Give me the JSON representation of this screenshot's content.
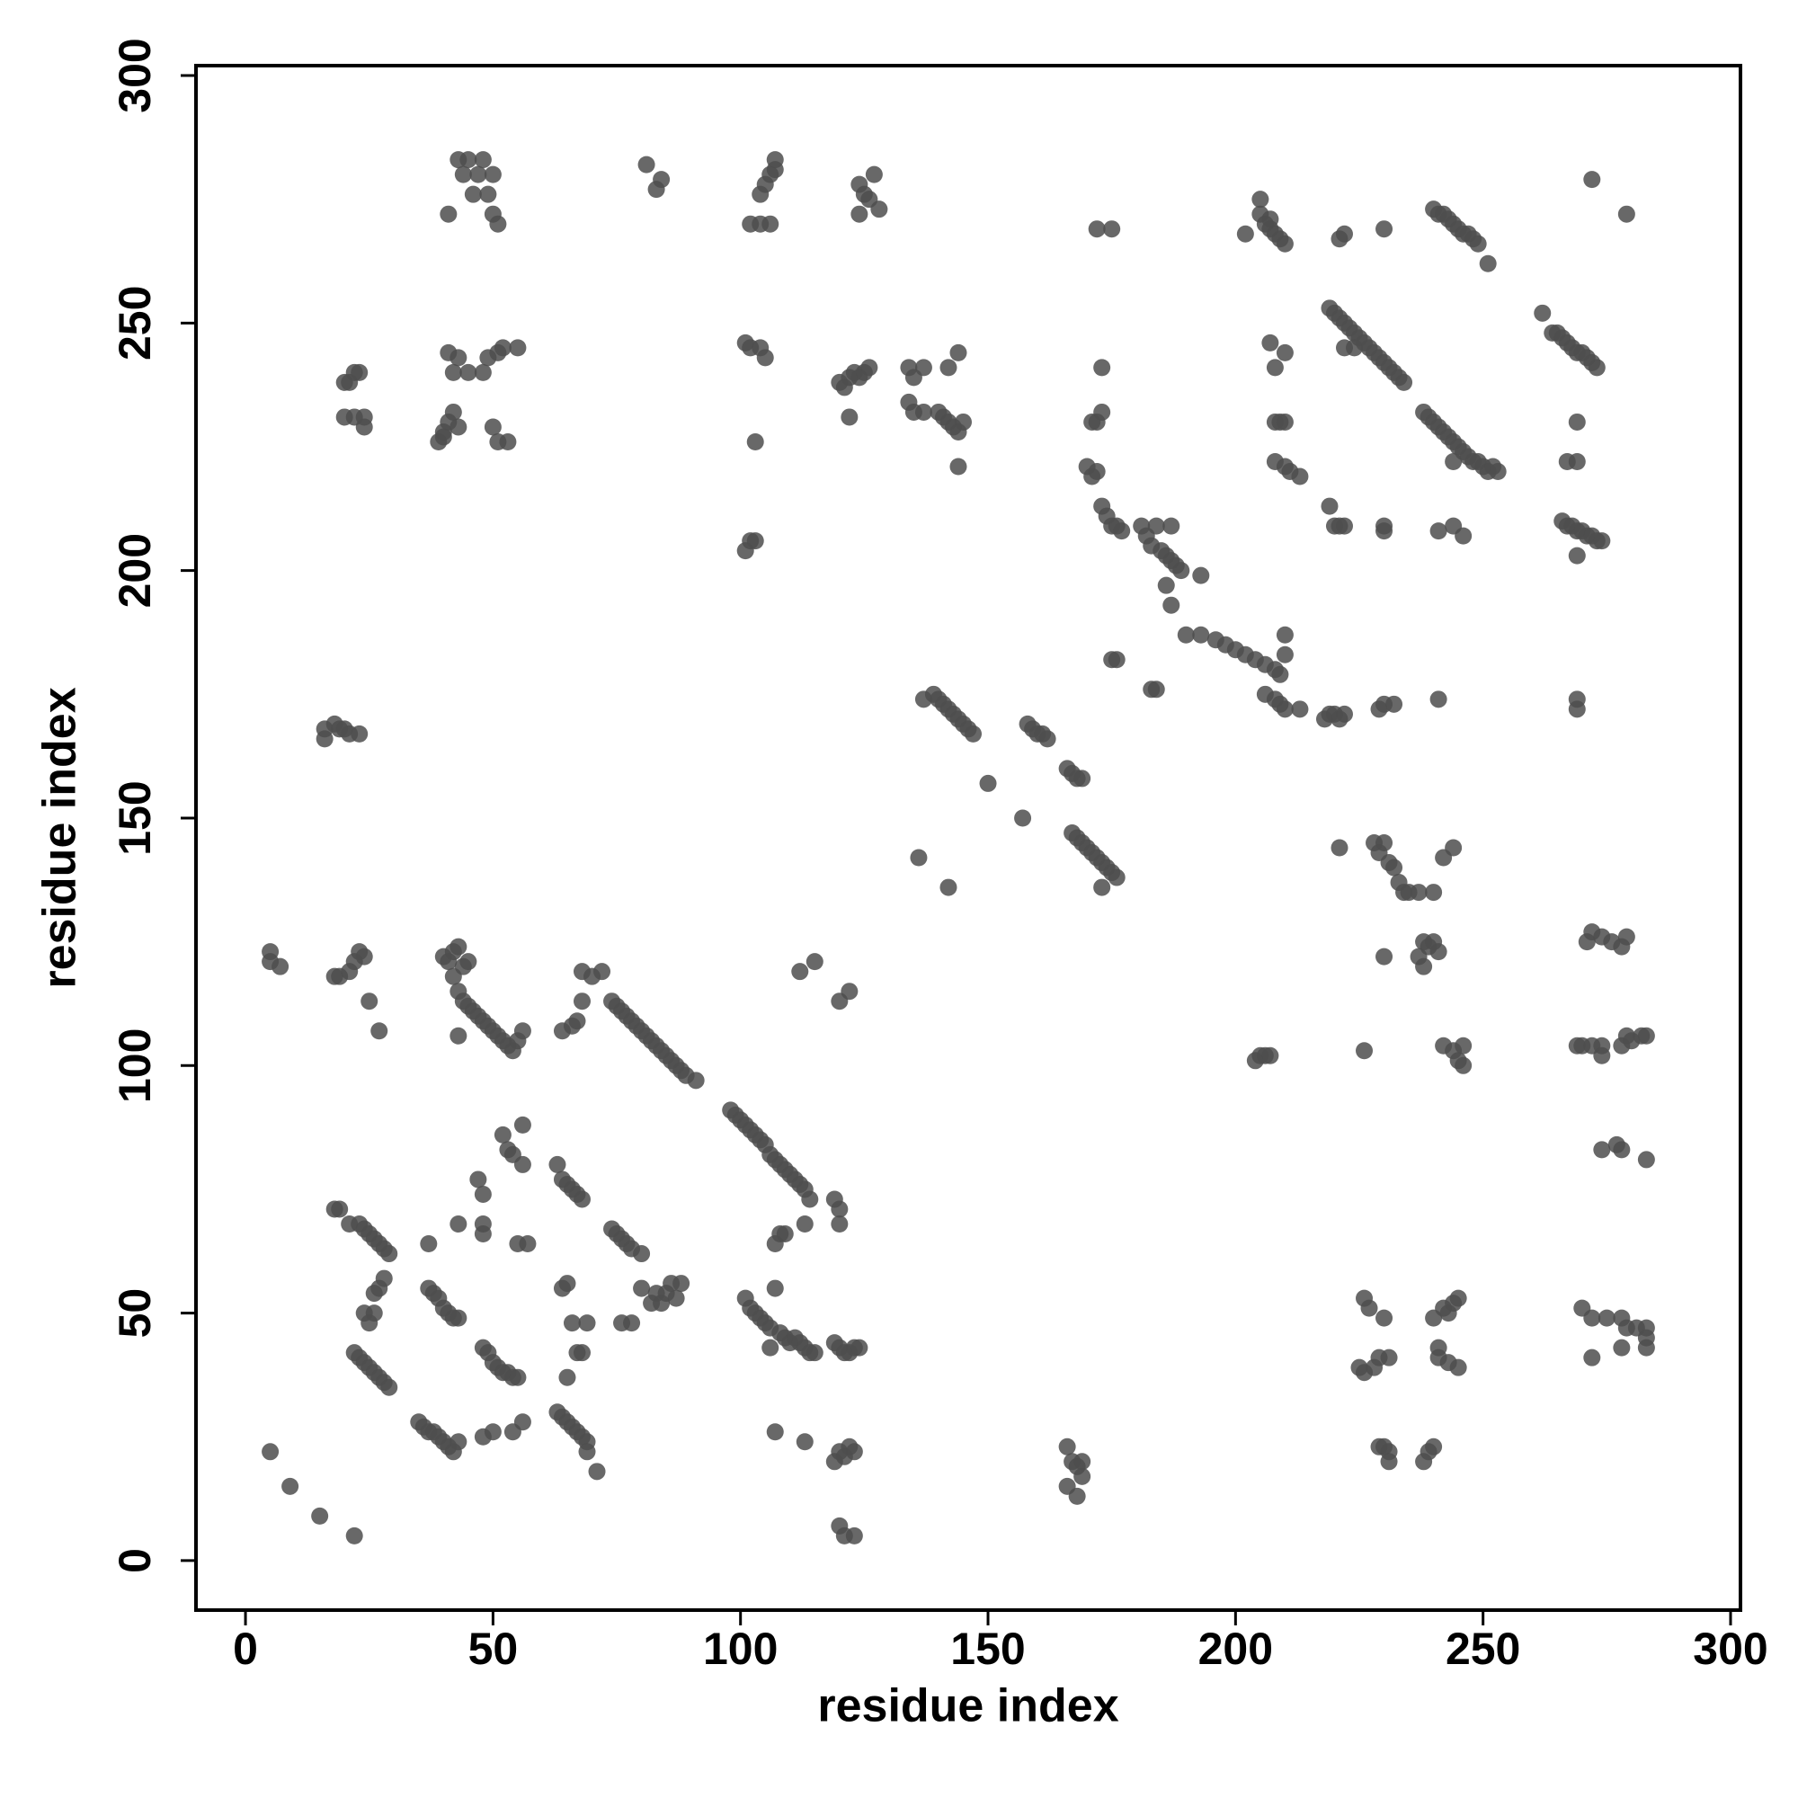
{
  "chart_data": {
    "type": "scatter",
    "xlabel": "residue index",
    "ylabel": "residue index",
    "xlim": [
      -10,
      302
    ],
    "ylim": [
      -10,
      302
    ],
    "xticks": [
      0,
      50,
      100,
      150,
      200,
      250,
      300
    ],
    "yticks": [
      0,
      50,
      100,
      150,
      200,
      250,
      300
    ],
    "color": "#4d4d4d",
    "x": [
      5,
      9,
      15,
      22,
      21,
      23,
      24,
      25,
      26,
      27,
      28,
      29,
      22,
      23,
      24,
      25,
      26,
      27,
      28,
      29,
      18,
      19,
      24,
      26,
      25,
      26,
      27,
      28,
      35,
      36,
      37,
      38,
      39,
      40,
      41,
      42,
      43,
      37,
      38,
      39,
      40,
      41,
      42,
      43,
      37,
      43,
      48,
      48,
      47,
      48,
      48,
      49,
      50,
      51,
      52,
      53,
      54,
      55,
      52,
      53,
      54,
      56,
      56,
      55,
      57,
      48,
      50,
      54,
      56,
      63,
      64,
      65,
      66,
      67,
      68,
      69,
      69,
      63,
      64,
      65,
      66,
      67,
      68,
      64,
      65,
      65,
      66,
      67,
      68,
      69,
      71,
      74,
      75,
      76,
      77,
      78,
      80,
      76,
      78,
      80,
      82,
      83,
      84,
      85,
      86,
      87,
      88,
      101,
      102,
      103,
      104,
      105,
      106,
      107,
      108,
      109,
      110,
      111,
      112,
      113,
      114,
      115,
      106,
      98,
      99,
      100,
      101,
      102,
      103,
      104,
      105,
      106,
      107,
      108,
      109,
      110,
      111,
      112,
      113,
      114,
      107,
      108,
      109,
      113,
      119,
      120,
      120,
      107,
      113,
      119,
      120,
      121,
      122,
      123,
      120,
      121,
      123,
      119,
      120,
      121,
      122,
      123,
      124,
      5,
      5,
      7,
      18,
      19,
      21,
      22,
      23,
      24,
      25,
      27,
      40,
      41,
      42,
      43,
      44,
      45,
      42,
      43,
      44,
      45,
      46,
      47,
      48,
      49,
      50,
      51,
      52,
      53,
      54,
      55,
      56,
      43,
      64,
      66,
      67,
      68,
      68,
      70,
      72,
      74,
      75,
      76,
      77,
      78,
      79,
      80,
      81,
      82,
      83,
      84,
      85,
      86,
      87,
      88,
      89,
      91,
      112,
      115,
      120,
      122,
      20,
      21,
      22,
      23,
      20,
      22,
      24,
      24,
      39,
      40,
      40,
      41,
      41,
      42,
      42,
      43,
      43,
      45,
      48,
      49,
      50,
      51,
      51,
      52,
      53,
      55,
      41,
      43,
      44,
      45,
      46,
      47,
      48,
      49,
      50,
      50,
      51,
      81,
      83,
      84,
      101,
      102,
      104,
      105,
      103,
      101,
      102,
      103,
      102,
      104,
      104,
      105,
      106,
      106,
      107,
      107,
      120,
      121,
      122,
      123,
      124,
      125,
      126,
      122,
      124,
      124,
      125,
      126,
      127,
      128,
      134,
      135,
      137,
      134,
      135,
      137,
      140,
      141,
      142,
      143,
      144,
      145,
      142,
      144,
      144,
      136,
      142,
      137,
      139,
      140,
      141,
      142,
      143,
      144,
      145,
      146,
      147,
      150,
      157,
      158,
      159,
      160,
      161,
      162,
      166,
      167,
      168,
      169,
      167,
      168,
      169,
      170,
      171,
      172,
      173,
      174,
      175,
      176,
      173,
      16,
      16,
      18,
      19,
      20,
      21,
      23,
      166,
      167,
      168,
      169,
      168,
      166,
      169,
      170,
      171,
      172,
      173,
      174,
      175,
      176,
      177,
      171,
      172,
      173,
      173,
      181,
      182,
      183,
      184,
      185,
      186,
      187,
      188,
      187,
      186,
      187,
      189,
      193,
      190,
      193,
      196,
      198,
      200,
      202,
      204,
      206,
      208,
      209,
      210,
      210,
      206,
      208,
      209,
      210,
      213,
      175,
      176,
      183,
      184,
      172,
      175,
      218,
      219,
      220,
      221,
      222,
      229,
      230,
      232,
      241,
      202,
      205,
      206,
      207,
      208,
      209,
      210,
      205,
      207,
      207,
      210,
      208,
      208,
      209,
      210,
      208,
      210,
      211,
      213,
      219,
      220,
      221,
      222,
      221,
      222,
      230,
      219,
      220,
      221,
      222,
      223,
      224,
      225,
      226,
      227,
      228,
      229,
      230,
      231,
      232,
      233,
      234,
      222,
      224,
      230,
      230,
      241,
      244,
      246,
      238,
      239,
      240,
      241,
      242,
      243,
      244,
      245,
      246,
      247,
      248,
      249,
      250,
      251,
      252,
      253,
      244,
      240,
      241,
      242,
      243,
      244,
      245,
      246,
      247,
      248,
      249,
      251,
      262,
      264,
      265,
      266,
      267,
      268,
      269,
      270,
      271,
      272,
      273,
      269,
      267,
      269,
      266,
      267,
      268,
      269,
      270,
      271,
      272,
      273,
      274,
      269,
      272,
      279,
      269,
      269,
      221,
      228,
      229,
      230,
      231,
      232,
      233,
      234,
      235,
      237,
      238,
      239,
      240,
      241,
      237,
      238,
      242,
      244,
      240,
      230,
      204,
      205,
      206,
      207,
      226,
      242,
      244,
      245,
      246,
      246,
      271,
      272,
      274,
      276,
      278,
      279,
      269,
      270,
      272,
      274,
      274,
      278,
      279,
      280,
      282,
      283,
      274,
      277,
      278,
      283,
      226,
      227,
      230,
      228,
      229,
      231,
      225,
      226,
      229,
      230,
      231,
      231,
      238,
      239,
      240,
      240,
      242,
      243,
      244,
      245,
      241,
      241,
      243,
      245,
      270,
      272,
      275,
      278,
      279,
      281,
      283,
      283,
      283,
      278,
      272
    ],
    "values": [
      22,
      15,
      9,
      5,
      68,
      68,
      67,
      66,
      65,
      64,
      63,
      62,
      42,
      41,
      40,
      39,
      38,
      37,
      36,
      35,
      71,
      71,
      50,
      50,
      48,
      54,
      55,
      57,
      28,
      27,
      26,
      26,
      25,
      24,
      23,
      22,
      24,
      55,
      54,
      53,
      51,
      50,
      49,
      49,
      64,
      68,
      66,
      68,
      77,
      74,
      43,
      42,
      40,
      39,
      38,
      38,
      37,
      37,
      86,
      83,
      82,
      88,
      80,
      64,
      64,
      25,
      26,
      26,
      28,
      30,
      29,
      28,
      27,
      26,
      25,
      24,
      22,
      80,
      77,
      76,
      75,
      74,
      73,
      55,
      56,
      37,
      48,
      42,
      42,
      48,
      18,
      67,
      66,
      65,
      64,
      63,
      62,
      48,
      48,
      55,
      52,
      54,
      52,
      54,
      56,
      53,
      56,
      53,
      51,
      50,
      49,
      48,
      47,
      55,
      46,
      45,
      44,
      45,
      44,
      43,
      42,
      42,
      43,
      91,
      90,
      89,
      88,
      87,
      86,
      85,
      84,
      82,
      81,
      80,
      79,
      78,
      77,
      76,
      75,
      73,
      64,
      66,
      66,
      68,
      73,
      71,
      68,
      26,
      24,
      20,
      22,
      21,
      23,
      22,
      7,
      5,
      5,
      44,
      43,
      42,
      42,
      43,
      43,
      123,
      121,
      120,
      118,
      118,
      119,
      121,
      123,
      122,
      113,
      107,
      122,
      121,
      123,
      124,
      120,
      121,
      118,
      115,
      113,
      112,
      111,
      110,
      109,
      108,
      107,
      106,
      105,
      104,
      103,
      105,
      107,
      106,
      107,
      108,
      109,
      119,
      113,
      118,
      119,
      113,
      112,
      111,
      110,
      109,
      108,
      107,
      106,
      105,
      104,
      103,
      102,
      101,
      100,
      99,
      98,
      97,
      119,
      121,
      113,
      115,
      238,
      238,
      240,
      240,
      231,
      231,
      231,
      229,
      226,
      227,
      228,
      244,
      230,
      232,
      240,
      243,
      229,
      240,
      240,
      243,
      229,
      244,
      226,
      245,
      226,
      245,
      272,
      283,
      280,
      283,
      276,
      280,
      283,
      276,
      280,
      272,
      270,
      282,
      277,
      279,
      246,
      245,
      245,
      243,
      226,
      204,
      206,
      206,
      270,
      270,
      276,
      278,
      270,
      280,
      281,
      283,
      238,
      237,
      239,
      240,
      239,
      240,
      241,
      231,
      272,
      278,
      276,
      275,
      280,
      273,
      241,
      239,
      241,
      234,
      232,
      232,
      232,
      231,
      230,
      229,
      228,
      230,
      241,
      244,
      221,
      142,
      136,
      174,
      175,
      174,
      173,
      172,
      171,
      170,
      169,
      168,
      167,
      157,
      150,
      169,
      168,
      167,
      167,
      166,
      160,
      159,
      158,
      158,
      147,
      146,
      145,
      144,
      143,
      142,
      141,
      140,
      139,
      138,
      136,
      168,
      166,
      169,
      168,
      168,
      167,
      167,
      15,
      20,
      19,
      17,
      13,
      23,
      20,
      221,
      219,
      220,
      213,
      211,
      209,
      209,
      208,
      230,
      230,
      232,
      241,
      209,
      207,
      205,
      209,
      204,
      203,
      202,
      201,
      209,
      197,
      193,
      200,
      199,
      187,
      187,
      186,
      185,
      184,
      183,
      182,
      181,
      180,
      179,
      183,
      187,
      175,
      174,
      173,
      172,
      172,
      182,
      182,
      176,
      176,
      269,
      269,
      170,
      171,
      171,
      170,
      171,
      172,
      173,
      173,
      174,
      268,
      272,
      270,
      269,
      268,
      267,
      266,
      275,
      271,
      246,
      244,
      241,
      230,
      230,
      230,
      222,
      221,
      220,
      219,
      213,
      209,
      209,
      209,
      267,
      268,
      269,
      253,
      252,
      251,
      250,
      249,
      248,
      247,
      246,
      245,
      244,
      243,
      242,
      241,
      240,
      239,
      238,
      245,
      245,
      209,
      208,
      208,
      209,
      207,
      232,
      231,
      230,
      229,
      228,
      227,
      226,
      225,
      224,
      223,
      222,
      222,
      221,
      220,
      221,
      220,
      222,
      273,
      272,
      272,
      271,
      270,
      269,
      268,
      268,
      267,
      266,
      262,
      252,
      248,
      248,
      247,
      246,
      245,
      244,
      244,
      243,
      242,
      241,
      230,
      222,
      222,
      210,
      209,
      209,
      208,
      208,
      207,
      207,
      206,
      206,
      203,
      279,
      272,
      174,
      172,
      144,
      145,
      143,
      145,
      141,
      140,
      137,
      135,
      135,
      135,
      125,
      124,
      125,
      123,
      122,
      120,
      142,
      144,
      135,
      122,
      101,
      102,
      102,
      102,
      103,
      104,
      103,
      101,
      104,
      100,
      125,
      127,
      126,
      125,
      124,
      126,
      104,
      104,
      104,
      104,
      102,
      104,
      106,
      105,
      106,
      106,
      83,
      84,
      83,
      81,
      53,
      51,
      49,
      39,
      41,
      41,
      39,
      38,
      23,
      23,
      22,
      20,
      20,
      22,
      23,
      49,
      51,
      50,
      52,
      53,
      43,
      41,
      40,
      39,
      51,
      49,
      49,
      49,
      47,
      47,
      47,
      45,
      43,
      43,
      41
    ]
  }
}
